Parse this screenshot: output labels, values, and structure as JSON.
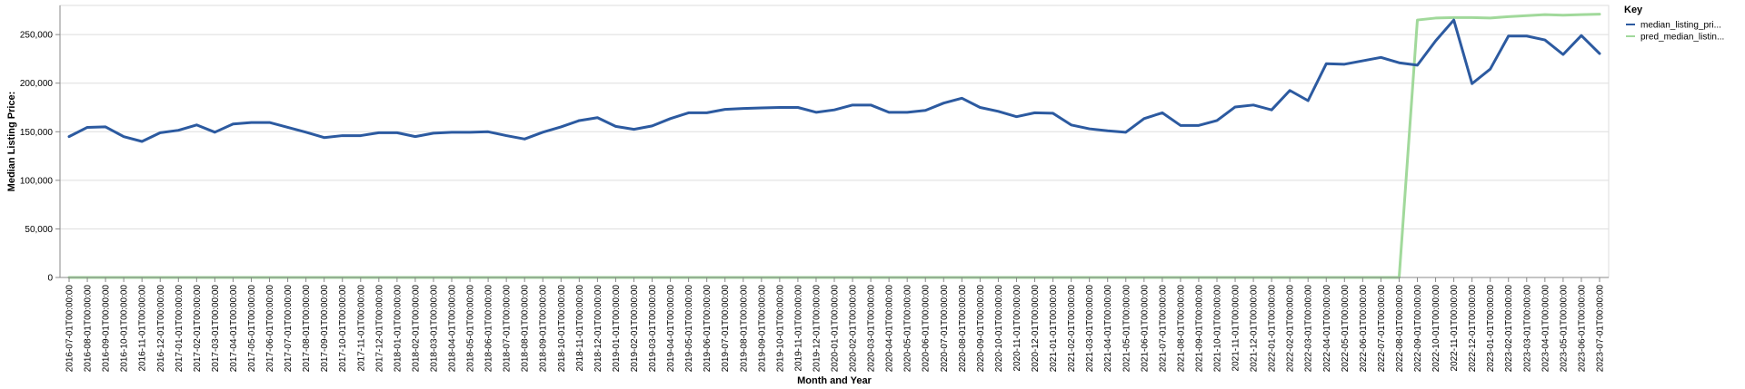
{
  "chart_data": {
    "type": "line",
    "xlabel": "Month and Year",
    "ylabel": "Median Listing Price:",
    "ylim": [
      0,
      280000
    ],
    "yticks": [
      0,
      50000,
      100000,
      150000,
      200000,
      250000
    ],
    "ytick_labels": [
      "0",
      "50,000",
      "100,000",
      "150,000",
      "200,000",
      "250,000"
    ],
    "grid": true,
    "legend_title": "Key",
    "legend_position": "top-right",
    "x": [
      "2016-07-01T00:00:00",
      "2016-08-01T00:00:00",
      "2016-09-01T00:00:00",
      "2016-10-01T00:00:00",
      "2016-11-01T00:00:00",
      "2016-12-01T00:00:00",
      "2017-01-01T00:00:00",
      "2017-02-01T00:00:00",
      "2017-03-01T00:00:00",
      "2017-04-01T00:00:00",
      "2017-05-01T00:00:00",
      "2017-06-01T00:00:00",
      "2017-07-01T00:00:00",
      "2017-08-01T00:00:00",
      "2017-09-01T00:00:00",
      "2017-10-01T00:00:00",
      "2017-11-01T00:00:00",
      "2017-12-01T00:00:00",
      "2018-01-01T00:00:00",
      "2018-02-01T00:00:00",
      "2018-03-01T00:00:00",
      "2018-04-01T00:00:00",
      "2018-05-01T00:00:00",
      "2018-06-01T00:00:00",
      "2018-07-01T00:00:00",
      "2018-08-01T00:00:00",
      "2018-09-01T00:00:00",
      "2018-10-01T00:00:00",
      "2018-11-01T00:00:00",
      "2018-12-01T00:00:00",
      "2019-01-01T00:00:00",
      "2019-02-01T00:00:00",
      "2019-03-01T00:00:00",
      "2019-04-01T00:00:00",
      "2019-05-01T00:00:00",
      "2019-06-01T00:00:00",
      "2019-07-01T00:00:00",
      "2019-08-01T00:00:00",
      "2019-09-01T00:00:00",
      "2019-10-01T00:00:00",
      "2019-11-01T00:00:00",
      "2019-12-01T00:00:00",
      "2020-01-01T00:00:00",
      "2020-02-01T00:00:00",
      "2020-03-01T00:00:00",
      "2020-04-01T00:00:00",
      "2020-05-01T00:00:00",
      "2020-06-01T00:00:00",
      "2020-07-01T00:00:00",
      "2020-08-01T00:00:00",
      "2020-09-01T00:00:00",
      "2020-10-01T00:00:00",
      "2020-11-01T00:00:00",
      "2020-12-01T00:00:00",
      "2021-01-01T00:00:00",
      "2021-02-01T00:00:00",
      "2021-03-01T00:00:00",
      "2021-04-01T00:00:00",
      "2021-05-01T00:00:00",
      "2021-06-01T00:00:00",
      "2021-07-01T00:00:00",
      "2021-08-01T00:00:00",
      "2021-09-01T00:00:00",
      "2021-10-01T00:00:00",
      "2021-11-01T00:00:00",
      "2021-12-01T00:00:00",
      "2022-01-01T00:00:00",
      "2022-02-01T00:00:00",
      "2022-03-01T00:00:00",
      "2022-04-01T00:00:00",
      "2022-05-01T00:00:00",
      "2022-06-01T00:00:00",
      "2022-07-01T00:00:00",
      "2022-08-01T00:00:00",
      "2022-09-01T00:00:00",
      "2022-10-01T00:00:00",
      "2022-11-01T00:00:00",
      "2022-12-01T00:00:00",
      "2023-01-01T00:00:00",
      "2023-02-01T00:00:00",
      "2023-03-01T00:00:00",
      "2023-04-01T00:00:00",
      "2023-05-01T00:00:00",
      "2023-06-01T00:00:00",
      "2023-07-01T00:00:00"
    ],
    "series": [
      {
        "name": "median_listing_pri...",
        "color": "#2c5aa0",
        "values": [
          145000,
          154500,
          155000,
          145000,
          140000,
          149000,
          151500,
          157000,
          149500,
          158000,
          159500,
          159500,
          154500,
          149500,
          144000,
          146000,
          146000,
          149000,
          149000,
          145000,
          148500,
          149500,
          149500,
          150000,
          146000,
          142500,
          149500,
          155000,
          161500,
          164500,
          155500,
          152500,
          156000,
          163500,
          169500,
          169500,
          173000,
          174000,
          174500,
          175000,
          175000,
          170000,
          172500,
          177500,
          177500,
          170000,
          170000,
          172000,
          179500,
          184500,
          175000,
          171000,
          165500,
          169500,
          169000,
          157000,
          153000,
          151000,
          149500,
          163500,
          169500,
          156500,
          156500,
          161500,
          175500,
          177500,
          172500,
          192500,
          182000,
          220000,
          219500,
          223000,
          226500,
          221000,
          218500,
          243500,
          265000,
          199500,
          214500,
          248500,
          248500,
          244500,
          229500,
          249000,
          230500
        ]
      },
      {
        "name": "pred_median_listin...",
        "color": "#a1d99b",
        "values": [
          0,
          0,
          0,
          0,
          0,
          0,
          0,
          0,
          0,
          0,
          0,
          0,
          0,
          0,
          0,
          0,
          0,
          0,
          0,
          0,
          0,
          0,
          0,
          0,
          0,
          0,
          0,
          0,
          0,
          0,
          0,
          0,
          0,
          0,
          0,
          0,
          0,
          0,
          0,
          0,
          0,
          0,
          0,
          0,
          0,
          0,
          0,
          0,
          0,
          0,
          0,
          0,
          0,
          0,
          0,
          0,
          0,
          0,
          0,
          0,
          0,
          0,
          0,
          0,
          0,
          0,
          0,
          0,
          0,
          0,
          0,
          0,
          0,
          0,
          265000,
          267000,
          267500,
          267500,
          267000,
          268500,
          269500,
          270500,
          270000,
          270500,
          271000
        ]
      }
    ]
  }
}
